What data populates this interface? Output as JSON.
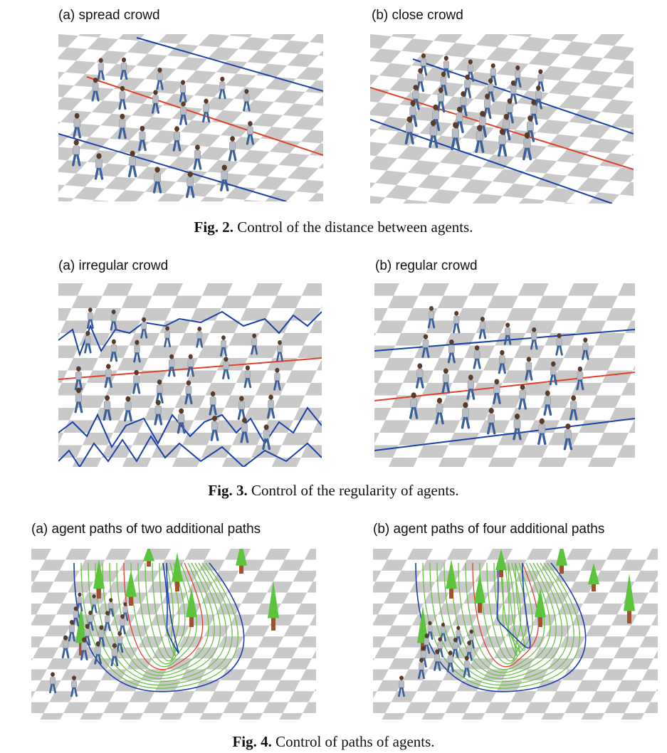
{
  "fig2": {
    "panel_a_label": "(a) spread crowd",
    "panel_b_label": "(b) close crowd",
    "caption_num": "Fig. 2.",
    "caption_text": "Control of the distance between agents."
  },
  "fig3": {
    "panel_a_label": "(a) irregular crowd",
    "panel_b_label": "(b) regular crowd",
    "caption_num": "Fig. 3.",
    "caption_text": "Control of the regularity of agents."
  },
  "fig4": {
    "panel_a_label": "(a) agent paths of two additional paths",
    "panel_b_label": "(b) agent paths of four additional paths",
    "caption_num": "Fig. 4.",
    "caption_text": "Control of paths of agents."
  },
  "colors": {
    "guide_line_blue": "#1a3fa8",
    "center_line_red": "#e0402a",
    "agent_path_green": "#6cc04a",
    "agent_shirt": "#b8bcc4",
    "agent_jeans": "#3a5f99",
    "tree_green": "#5cc43c",
    "tree_trunk": "#a0522d",
    "checker_light": "#ffffff",
    "checker_dark": "#c9c9c9"
  }
}
